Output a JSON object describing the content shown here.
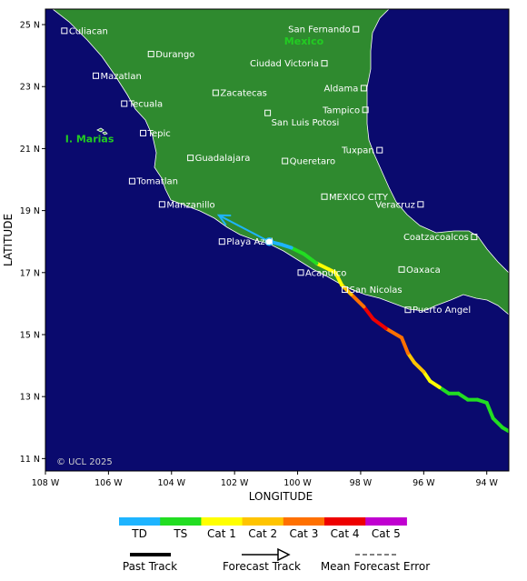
{
  "colors": {
    "ocean": "#0a0a6e",
    "land": "#2f8a2f",
    "coast": "#ffffff",
    "TD": "#1eb4ff",
    "TS": "#22dd22",
    "Cat 1": "#ffff00",
    "Cat 2": "#ffc400",
    "Cat 3": "#ff7000",
    "Cat 4": "#ee0000",
    "Cat 5": "#c000d0"
  },
  "axes": {
    "xlabel": "LONGITUDE",
    "ylabel": "LATITUDE",
    "lon_range": [
      -108.0,
      -93.3
    ],
    "lat_range": [
      10.6,
      25.5
    ],
    "x_ticks": [
      {
        "value": -108,
        "label": "108 W"
      },
      {
        "value": -106,
        "label": "106 W"
      },
      {
        "value": -104,
        "label": "104 W"
      },
      {
        "value": -102,
        "label": "102 W"
      },
      {
        "value": -100,
        "label": "100 W"
      },
      {
        "value": -98,
        "label": "98 W"
      },
      {
        "value": -96,
        "label": "96 W"
      },
      {
        "value": -94,
        "label": "94 W"
      }
    ],
    "y_ticks": [
      {
        "value": 25,
        "label": "25 N"
      },
      {
        "value": 23,
        "label": "23 N"
      },
      {
        "value": 21,
        "label": "21 N"
      },
      {
        "value": 19,
        "label": "19 N"
      },
      {
        "value": 17,
        "label": "17 N"
      },
      {
        "value": 15,
        "label": "15 N"
      },
      {
        "value": 13,
        "label": "13 N"
      },
      {
        "value": 11,
        "label": "11 N"
      }
    ]
  },
  "region_labels": [
    {
      "name": "Mexico",
      "lon": -99.8,
      "lat": 24.35
    },
    {
      "name": "I. Marias",
      "lon": -106.6,
      "lat": 21.2
    }
  ],
  "cities": [
    {
      "name": "Culiacan",
      "lon": -107.4,
      "lat": 24.8,
      "side": "right"
    },
    {
      "name": "Durango",
      "lon": -104.65,
      "lat": 24.05,
      "side": "right"
    },
    {
      "name": "Mazatlan",
      "lon": -106.4,
      "lat": 23.35,
      "side": "right"
    },
    {
      "name": "Tecuala",
      "lon": -105.5,
      "lat": 22.45,
      "side": "right"
    },
    {
      "name": "Zacatecas",
      "lon": -102.6,
      "lat": 22.8,
      "side": "right"
    },
    {
      "name": "Tepic",
      "lon": -104.9,
      "lat": 21.5,
      "side": "right"
    },
    {
      "name": "San Luis Potosi",
      "lon": -100.95,
      "lat": 22.15,
      "side": "below-right"
    },
    {
      "name": "Guadalajara",
      "lon": -103.4,
      "lat": 20.7,
      "side": "right"
    },
    {
      "name": "Tomatlan",
      "lon": -105.25,
      "lat": 19.95,
      "side": "right"
    },
    {
      "name": "Manzanillo",
      "lon": -104.3,
      "lat": 19.2,
      "side": "right"
    },
    {
      "name": "Queretaro",
      "lon": -100.4,
      "lat": 20.6,
      "side": "right"
    },
    {
      "name": "San Fernando",
      "lon": -98.15,
      "lat": 24.85,
      "side": "left"
    },
    {
      "name": "Ciudad Victoria",
      "lon": -99.15,
      "lat": 23.75,
      "side": "left"
    },
    {
      "name": "Aldama",
      "lon": -97.9,
      "lat": 22.95,
      "side": "left"
    },
    {
      "name": "Tampico",
      "lon": -97.85,
      "lat": 22.25,
      "side": "left"
    },
    {
      "name": "Tuxpan",
      "lon": -97.4,
      "lat": 20.95,
      "side": "left"
    },
    {
      "name": "MEXICO CITY",
      "lon": -99.15,
      "lat": 19.45,
      "side": "right"
    },
    {
      "name": "Veracruz",
      "lon": -96.1,
      "lat": 19.2,
      "side": "left"
    },
    {
      "name": "Coatzacoalcos",
      "lon": -94.4,
      "lat": 18.15,
      "side": "left"
    },
    {
      "name": "Playa Azul",
      "lon": -102.4,
      "lat": 18.0,
      "side": "right"
    },
    {
      "name": "Acapulco",
      "lon": -99.9,
      "lat": 17.0,
      "side": "right"
    },
    {
      "name": "Oaxaca",
      "lon": -96.7,
      "lat": 17.1,
      "side": "right"
    },
    {
      "name": "San Nicolas",
      "lon": -98.5,
      "lat": 16.45,
      "side": "right"
    },
    {
      "name": "Puerto Angel",
      "lon": -96.5,
      "lat": 15.8,
      "side": "right"
    }
  ],
  "past_track": [
    {
      "lon": -93.0,
      "lat": 11.7,
      "cat": "TS"
    },
    {
      "lon": -93.5,
      "lat": 12.0,
      "cat": "TS"
    },
    {
      "lon": -93.8,
      "lat": 12.3,
      "cat": "TS"
    },
    {
      "lon": -94.0,
      "lat": 12.8,
      "cat": "TS"
    },
    {
      "lon": -94.3,
      "lat": 12.9,
      "cat": "TS"
    },
    {
      "lon": -94.6,
      "lat": 12.9,
      "cat": "TS"
    },
    {
      "lon": -94.9,
      "lat": 13.1,
      "cat": "TS"
    },
    {
      "lon": -95.2,
      "lat": 13.1,
      "cat": "TS"
    },
    {
      "lon": -95.5,
      "lat": 13.3,
      "cat": "TS"
    },
    {
      "lon": -95.8,
      "lat": 13.5,
      "cat": "Cat 1"
    },
    {
      "lon": -96.0,
      "lat": 13.8,
      "cat": "Cat 1"
    },
    {
      "lon": -96.3,
      "lat": 14.1,
      "cat": "Cat 2"
    },
    {
      "lon": -96.5,
      "lat": 14.4,
      "cat": "Cat 2"
    },
    {
      "lon": -96.7,
      "lat": 14.9,
      "cat": "Cat 3"
    },
    {
      "lon": -97.2,
      "lat": 15.2,
      "cat": "Cat 3"
    },
    {
      "lon": -97.6,
      "lat": 15.5,
      "cat": "Cat 4"
    },
    {
      "lon": -97.9,
      "lat": 15.9,
      "cat": "Cat 4"
    },
    {
      "lon": -98.3,
      "lat": 16.3,
      "cat": "Cat 3"
    },
    {
      "lon": -98.6,
      "lat": 16.6,
      "cat": "Cat 2"
    },
    {
      "lon": -98.8,
      "lat": 17.0,
      "cat": "Cat 1"
    },
    {
      "lon": -99.0,
      "lat": 17.1,
      "cat": "Cat 1"
    },
    {
      "lon": -99.4,
      "lat": 17.3,
      "cat": "Cat 1"
    },
    {
      "lon": -99.8,
      "lat": 17.6,
      "cat": "TS"
    },
    {
      "lon": -100.2,
      "lat": 17.8,
      "cat": "TS"
    },
    {
      "lon": -100.5,
      "lat": 17.9,
      "cat": "TD"
    },
    {
      "lon": -100.9,
      "lat": 18.0,
      "cat": "TD"
    }
  ],
  "forecast_track": {
    "cat": "TD",
    "points": [
      {
        "lon": -100.9,
        "lat": 18.0
      },
      {
        "lon": -102.5,
        "lat": 18.85
      }
    ]
  },
  "legend": {
    "categories": [
      "TD",
      "TS",
      "Cat 1",
      "Cat 2",
      "Cat 3",
      "Cat 4",
      "Cat 5"
    ],
    "past_track_label": "Past Track",
    "forecast_track_label": "Forecast Track",
    "error_label": "Mean Forecast Error"
  },
  "copyright": "© UCL 2025"
}
